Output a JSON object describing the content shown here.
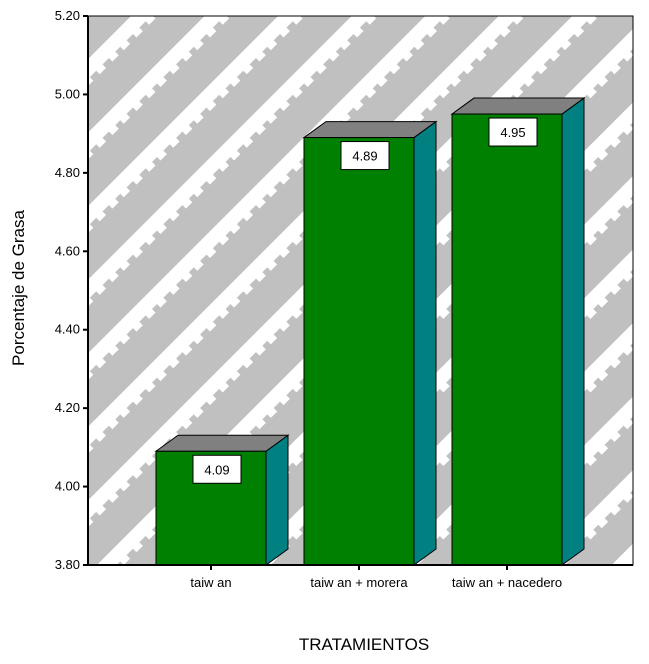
{
  "chart_data": {
    "type": "bar",
    "categories": [
      "taiw an",
      "taiw an + morera",
      "taiw an + nacedero"
    ],
    "values": [
      4.09,
      4.89,
      4.95
    ],
    "data_labels": [
      "4.09",
      "4.89",
      "4.95"
    ],
    "xlabel": "TRATAMIENTOS",
    "ylabel": "Porcentaje de Grasa",
    "ylim": [
      3.8,
      5.2
    ],
    "yticks": [
      "3.80",
      "4.00",
      "4.20",
      "4.40",
      "4.60",
      "4.80",
      "5.00",
      "5.20"
    ],
    "grid": false,
    "legend": "none",
    "three_d": true
  },
  "colors": {
    "bar_front": "#008000",
    "bar_side": "#008080",
    "bar_top": "#808080",
    "plot_background": "#c0c0c0",
    "stripes": "#ffffff"
  }
}
